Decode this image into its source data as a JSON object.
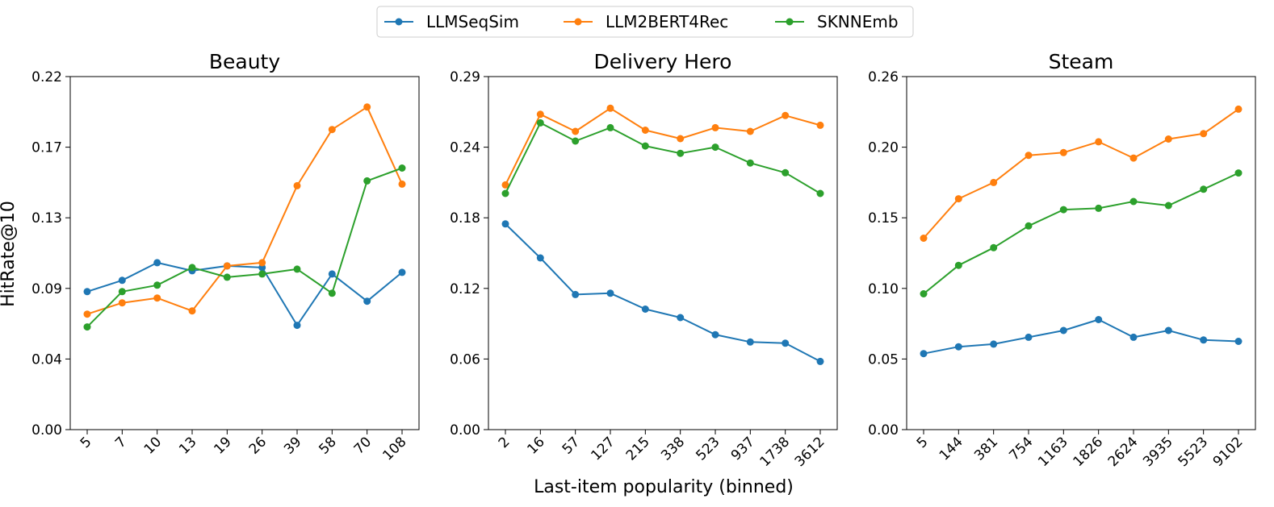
{
  "legend": {
    "placement": "top-center",
    "entries": [
      {
        "label": "LLMSeqSim",
        "color": "#1f77b4"
      },
      {
        "label": "LLM2BERT4Rec",
        "color": "#ff7f0e"
      },
      {
        "label": "SKNNEmb",
        "color": "#2ca02c"
      }
    ]
  },
  "shared": {
    "ylabel": "HitRate@10",
    "xlabel": "Last-item popularity (binned)"
  },
  "chart_data": [
    {
      "type": "line",
      "title": "Beauty",
      "categories": [
        "5",
        "7",
        "10",
        "13",
        "19",
        "26",
        "39",
        "58",
        "70",
        "108"
      ],
      "yticks": [
        "0.00",
        "0.04",
        "0.09",
        "0.13",
        "0.17",
        "0.22"
      ],
      "ylim": [
        0,
        0.22
      ],
      "grid": false,
      "series": [
        {
          "name": "LLMSeqSim",
          "color": "#1f77b4",
          "values": [
            0.086,
            0.093,
            0.104,
            0.099,
            0.102,
            0.101,
            0.065,
            0.097,
            0.08,
            0.098
          ]
        },
        {
          "name": "LLM2BERT4Rec",
          "color": "#ff7f0e",
          "values": [
            0.072,
            0.079,
            0.082,
            0.074,
            0.102,
            0.104,
            0.152,
            0.187,
            0.201,
            0.153
          ]
        },
        {
          "name": "SKNNEmb",
          "color": "#2ca02c",
          "values": [
            0.064,
            0.086,
            0.09,
            0.101,
            0.095,
            0.097,
            0.1,
            0.085,
            0.155,
            0.163
          ]
        }
      ]
    },
    {
      "type": "line",
      "title": "Delivery Hero",
      "categories": [
        "2",
        "16",
        "57",
        "127",
        "215",
        "338",
        "523",
        "937",
        "1738",
        "3612"
      ],
      "yticks": [
        "0.00",
        "0.06",
        "0.12",
        "0.18",
        "0.24",
        "0.29"
      ],
      "ylim": [
        0,
        0.29
      ],
      "grid": false,
      "series": [
        {
          "name": "LLMSeqSim",
          "color": "#1f77b4",
          "values": [
            0.169,
            0.141,
            0.111,
            0.112,
            0.099,
            0.092,
            0.078,
            0.072,
            0.071,
            0.056
          ]
        },
        {
          "name": "LLM2BERT4Rec",
          "color": "#ff7f0e",
          "values": [
            0.201,
            0.259,
            0.245,
            0.264,
            0.246,
            0.239,
            0.248,
            0.245,
            0.258,
            0.25
          ]
        },
        {
          "name": "SKNNEmb",
          "color": "#2ca02c",
          "values": [
            0.194,
            0.252,
            0.237,
            0.248,
            0.233,
            0.227,
            0.232,
            0.219,
            0.211,
            0.194
          ]
        }
      ]
    },
    {
      "type": "line",
      "title": "Steam",
      "categories": [
        "5",
        "144",
        "381",
        "754",
        "1163",
        "1826",
        "2624",
        "3935",
        "5523",
        "9102"
      ],
      "yticks": [
        "0.00",
        "0.05",
        "0.10",
        "0.15",
        "0.20",
        "0.26"
      ],
      "ylim": [
        0,
        0.26
      ],
      "grid": false,
      "series": [
        {
          "name": "LLMSeqSim",
          "color": "#1f77b4",
          "values": [
            0.056,
            0.061,
            0.063,
            0.068,
            0.073,
            0.081,
            0.068,
            0.073,
            0.066,
            0.065
          ]
        },
        {
          "name": "LLM2BERT4Rec",
          "color": "#ff7f0e",
          "values": [
            0.141,
            0.17,
            0.182,
            0.202,
            0.204,
            0.212,
            0.2,
            0.214,
            0.218,
            0.236
          ]
        },
        {
          "name": "SKNNEmb",
          "color": "#2ca02c",
          "values": [
            0.1,
            0.121,
            0.134,
            0.15,
            0.162,
            0.163,
            0.168,
            0.165,
            0.177,
            0.189
          ]
        }
      ]
    }
  ]
}
